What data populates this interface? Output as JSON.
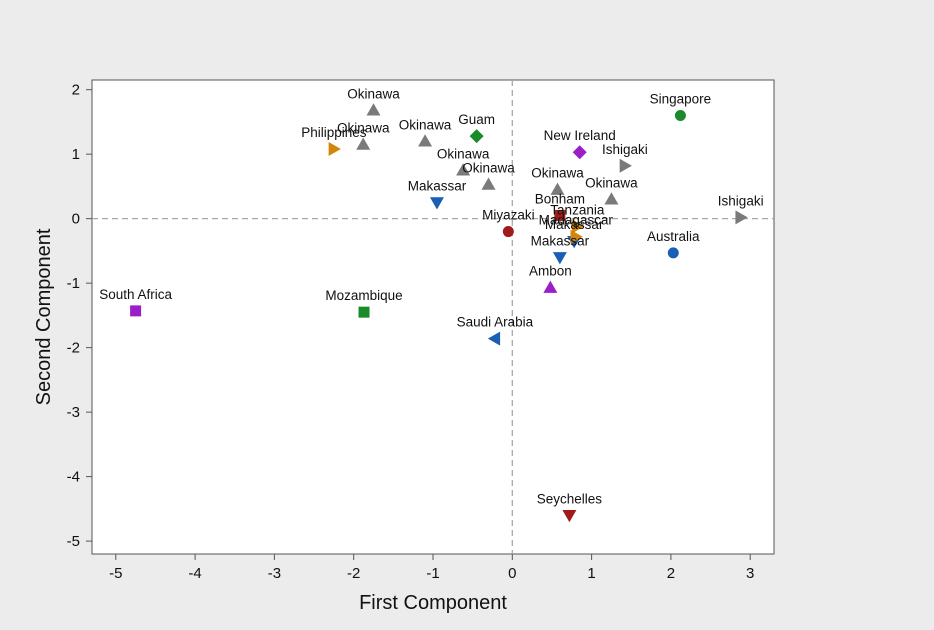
{
  "chart_data": {
    "type": "scatter",
    "title": "",
    "xlabel": "First Component",
    "ylabel": "Second Component",
    "xlim": [
      -5.3,
      3.3
    ],
    "ylim": [
      -5.2,
      2.15
    ],
    "xticks": [
      -5,
      -4,
      -3,
      -2,
      -1,
      0,
      1,
      2,
      3
    ],
    "yticks": [
      2,
      1,
      0,
      -1,
      -2,
      -3,
      -4,
      -5
    ],
    "xtick_labels": [
      "-5",
      "-4",
      "-3",
      "-2",
      "-1",
      "0",
      "1",
      "2",
      "3"
    ],
    "ytick_labels": [
      "2",
      "1",
      "0",
      "-1",
      "-2",
      "-3",
      "-4",
      "-5"
    ],
    "reference_lines": {
      "x": 0,
      "y": 0,
      "style": "dashed"
    },
    "grid": false,
    "legend": "none",
    "points": [
      {
        "label": "Okinawa",
        "x": -1.75,
        "y": 1.68,
        "marker": "triangle-up",
        "color": "#7a7a7a"
      },
      {
        "label": "Okinawa",
        "x": -1.88,
        "y": 1.15,
        "marker": "triangle-up",
        "color": "#7a7a7a"
      },
      {
        "label": "Okinawa",
        "x": -1.1,
        "y": 1.2,
        "marker": "triangle-up",
        "color": "#7a7a7a"
      },
      {
        "label": "Okinawa",
        "x": -0.62,
        "y": 0.75,
        "marker": "triangle-up",
        "color": "#7a7a7a"
      },
      {
        "label": "Okinawa",
        "x": -0.3,
        "y": 0.53,
        "marker": "triangle-up",
        "color": "#7a7a7a"
      },
      {
        "label": "Okinawa",
        "x": 0.57,
        "y": 0.45,
        "marker": "triangle-up",
        "color": "#7a7a7a"
      },
      {
        "label": "Okinawa",
        "x": 1.25,
        "y": 0.3,
        "marker": "triangle-up",
        "color": "#7a7a7a"
      },
      {
        "label": "Philippines",
        "x": -2.25,
        "y": 1.08,
        "marker": "triangle-right",
        "color": "#d4860b"
      },
      {
        "label": "Guam",
        "x": -0.45,
        "y": 1.28,
        "marker": "diamond",
        "color": "#1a8a2a"
      },
      {
        "label": "Singapore",
        "x": 2.12,
        "y": 1.6,
        "marker": "circle",
        "color": "#1a8a2a"
      },
      {
        "label": "New Ireland",
        "x": 0.85,
        "y": 1.03,
        "marker": "diamond",
        "color": "#9a1fc9"
      },
      {
        "label": "Ishigaki",
        "x": 1.42,
        "y": 0.82,
        "marker": "triangle-right",
        "color": "#7a7a7a"
      },
      {
        "label": "Ishigaki",
        "x": 2.88,
        "y": 0.02,
        "marker": "triangle-right",
        "color": "#7a7a7a"
      },
      {
        "label": "Makassar",
        "x": -0.95,
        "y": 0.25,
        "marker": "triangle-down",
        "color": "#1a5fb4"
      },
      {
        "label": "Makassar",
        "x": 0.78,
        "y": -0.35,
        "marker": "triangle-down",
        "color": "#1a5fb4"
      },
      {
        "label": "Makassar",
        "x": 0.6,
        "y": -0.6,
        "marker": "triangle-down",
        "color": "#1a5fb4"
      },
      {
        "label": "Bonham",
        "x": 0.6,
        "y": 0.05,
        "marker": "square",
        "color": "#a01c1c"
      },
      {
        "label": "Tanzania",
        "x": 0.82,
        "y": -0.12,
        "marker": "triangle-right",
        "color": "#d4860b"
      },
      {
        "label": "Madagascar",
        "x": 0.8,
        "y": -0.28,
        "marker": "triangle-right",
        "color": "#d4860b"
      },
      {
        "label": "Miyazaki",
        "x": -0.05,
        "y": -0.2,
        "marker": "circle",
        "color": "#a01c1c"
      },
      {
        "label": "Australia",
        "x": 2.03,
        "y": -0.53,
        "marker": "circle",
        "color": "#1a5fb4"
      },
      {
        "label": "Ambon",
        "x": 0.48,
        "y": -1.07,
        "marker": "triangle-up",
        "color": "#9a1fc9"
      },
      {
        "label": "South Africa",
        "x": -4.75,
        "y": -1.43,
        "marker": "square",
        "color": "#9a1fc9"
      },
      {
        "label": "Mozambique",
        "x": -1.87,
        "y": -1.45,
        "marker": "square",
        "color": "#1a8a2a"
      },
      {
        "label": "Saudi Arabia",
        "x": -0.22,
        "y": -1.86,
        "marker": "triangle-left",
        "color": "#1a5fb4"
      },
      {
        "label": "Seychelles",
        "x": 0.72,
        "y": -4.6,
        "marker": "triangle-down",
        "color": "#a01c1c"
      }
    ]
  }
}
